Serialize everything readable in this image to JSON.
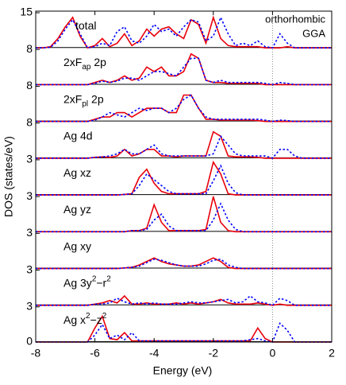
{
  "chart_data": {
    "type": "line",
    "xlabel": "Energy (eV)",
    "ylabel": "DOS (states/eV)",
    "annotations": [
      "orthorhombic",
      "GGA"
    ],
    "vline": 0,
    "xlim": [
      -8,
      2
    ],
    "xticks": [
      -8,
      -6,
      -4,
      -2,
      0,
      2
    ],
    "x": [
      -8,
      -7.75,
      -7.5,
      -7.25,
      -7,
      -6.75,
      -6.5,
      -6.25,
      -6,
      -5.75,
      -5.5,
      -5.25,
      -5,
      -4.75,
      -4.5,
      -4.25,
      -4,
      -3.75,
      -3.5,
      -3.25,
      -3,
      -2.75,
      -2.5,
      -2.25,
      -2,
      -1.75,
      -1.5,
      -1.25,
      -1,
      -0.75,
      -0.5,
      -0.25,
      0,
      0.25,
      0.5,
      0.75,
      1,
      1.25,
      1.5,
      1.75,
      2
    ],
    "panels": [
      {
        "label": [
          "total"
        ],
        "ylim": [
          0,
          15
        ],
        "yticks": [
          15
        ],
        "series": [
          {
            "color": "#e8000b",
            "style": "solid",
            "values": [
              0,
              0,
              0.5,
              4,
              9,
              13,
              5,
              0,
              1,
              4,
              0.5,
              2,
              6,
              1,
              3,
              8,
              5,
              8,
              9,
              6,
              4,
              12,
              10,
              2,
              13,
              4,
              1,
              0.5,
              0.5,
              0.5,
              0.5,
              0,
              0,
              0,
              0.5,
              0,
              0,
              0,
              0,
              0,
              0
            ]
          },
          {
            "color": "#0000ff",
            "style": "dotted",
            "values": [
              0,
              0,
              0.3,
              3,
              8,
              12,
              6,
              0,
              0.5,
              2,
              1,
              7,
              9,
              3,
              2,
              5,
              10,
              7,
              8,
              5,
              9,
              12,
              11,
              3,
              5,
              13,
              6,
              1,
              2,
              1,
              3,
              0.5,
              0,
              6,
              2,
              0,
              0,
              0,
              0,
              0,
              0
            ]
          }
        ]
      },
      {
        "label": [
          "2xF",
          {
            "sub": "ap"
          },
          "  2p"
        ],
        "ylim": [
          0,
          8
        ],
        "yticks": [
          8
        ],
        "series": [
          {
            "color": "#e8000b",
            "style": "solid",
            "values": [
              0,
              0,
              0,
              0,
              0,
              0,
              0,
              0,
              0.5,
              1,
              0.5,
              1,
              2,
              1,
              1.5,
              4,
              3,
              4,
              2,
              2,
              3,
              7,
              6,
              1,
              0.5,
              0.5,
              0.3,
              0.3,
              0.3,
              0.3,
              0.3,
              0,
              0,
              0,
              0,
              0,
              0,
              0,
              0,
              0,
              0
            ]
          },
          {
            "color": "#0000ff",
            "style": "dotted",
            "values": [
              0,
              0,
              0,
              0,
              0,
              0,
              0,
              0,
              0.3,
              0.8,
              0.5,
              0.8,
              1.5,
              1.5,
              1,
              2,
              3,
              3,
              2.5,
              2,
              4,
              6,
              6,
              1,
              0.5,
              1,
              0.5,
              0.5,
              0.5,
              0.5,
              0.5,
              0.3,
              0,
              0.5,
              0.3,
              0,
              0,
              0,
              0,
              0,
              0
            ]
          }
        ]
      },
      {
        "label": [
          "2xF",
          {
            "sub": "pl"
          },
          "  2p"
        ],
        "ylim": [
          0,
          8
        ],
        "yticks": [
          8
        ],
        "series": [
          {
            "color": "#e8000b",
            "style": "solid",
            "values": [
              0,
              0,
              0,
              0,
              0,
              0,
              0,
              0,
              0.5,
              1,
              1,
              2,
              2,
              1,
              2,
              3,
              3,
              3,
              2,
              2,
              6,
              6,
              3,
              0.5,
              0.5,
              0.3,
              0.3,
              0.3,
              0.3,
              0.3,
              0.2,
              0,
              0,
              0,
              0,
              0,
              0,
              0,
              0,
              0,
              0
            ]
          },
          {
            "color": "#0000ff",
            "style": "dotted",
            "values": [
              0,
              0,
              0,
              0,
              0,
              0,
              0,
              0,
              0.3,
              1,
              2,
              1.5,
              1,
              2,
              3,
              2.5,
              3,
              3,
              2,
              3,
              5,
              6,
              3,
              1,
              0.5,
              0.5,
              0.5,
              0.5,
              0.5,
              0.5,
              0.5,
              0.3,
              0,
              0.3,
              0.2,
              0,
              0,
              0,
              0,
              0,
              0
            ]
          }
        ]
      },
      {
        "label": [
          "Ag 4d"
        ],
        "ylim": [
          0,
          8
        ],
        "yticks": [
          8
        ],
        "series": [
          {
            "color": "#e8000b",
            "style": "solid",
            "values": [
              0,
              0,
              0,
              0,
              0,
              0,
              0,
              0,
              0.2,
              0.3,
              0.2,
              0.5,
              2,
              0.5,
              1,
              2,
              2,
              0.5,
              0.5,
              0.3,
              0.5,
              0.5,
              0.5,
              0.5,
              6,
              5,
              0.5,
              0.3,
              0.3,
              0.3,
              0.2,
              0,
              0,
              0,
              0,
              0,
              0,
              0,
              0,
              0,
              0
            ]
          },
          {
            "color": "#0000ff",
            "style": "dotted",
            "values": [
              0,
              0,
              0,
              0,
              0,
              0,
              0,
              0,
              0.2,
              0.3,
              0.5,
              1,
              2,
              1,
              1,
              2,
              3,
              1,
              0.5,
              0.5,
              0.5,
              0.5,
              0.5,
              0.5,
              1,
              5,
              3,
              1,
              0.5,
              0.5,
              0.5,
              0.5,
              0,
              2,
              2,
              0.5,
              0,
              0,
              0,
              0,
              0
            ]
          }
        ]
      },
      {
        "label": [
          "Ag xz"
        ],
        "ylim": [
          0,
          3
        ],
        "yticks": [
          3
        ],
        "series": [
          {
            "color": "#e8000b",
            "style": "solid",
            "values": [
              0,
              0,
              0,
              0,
              0,
              0,
              0,
              0,
              0,
              0,
              0,
              0,
              0.05,
              0.1,
              1.5,
              2.2,
              1.0,
              0.3,
              0.1,
              0.1,
              0.1,
              0.1,
              0.1,
              0.3,
              2.8,
              1.8,
              0.1,
              0,
              0,
              0,
              0,
              0,
              0,
              0,
              0,
              0,
              0,
              0,
              0,
              0,
              0
            ]
          },
          {
            "color": "#0000ff",
            "style": "dotted",
            "values": [
              0,
              0,
              0,
              0,
              0,
              0,
              0,
              0,
              0,
              0,
              0,
              0,
              0.05,
              0.1,
              0.8,
              1.8,
              1.3,
              0.8,
              0.3,
              0.1,
              0.1,
              0.1,
              0.1,
              0.1,
              1.2,
              2.5,
              1.0,
              0.2,
              0,
              0,
              0,
              0,
              0,
              0,
              0,
              0,
              0,
              0,
              0,
              0,
              0
            ]
          }
        ]
      },
      {
        "label": [
          "Ag yz"
        ],
        "ylim": [
          0,
          3
        ],
        "yticks": [
          3
        ],
        "series": [
          {
            "color": "#e8000b",
            "style": "solid",
            "values": [
              0,
              0,
              0,
              0,
              0,
              0,
              0,
              0,
              0,
              0,
              0,
              0,
              0,
              0.1,
              0.1,
              0.3,
              2.3,
              0.8,
              0.1,
              0.1,
              0.1,
              0.1,
              0.1,
              0.2,
              3.0,
              0.8,
              0.1,
              0,
              0,
              0,
              0,
              0,
              0,
              0,
              0,
              0,
              0,
              0,
              0,
              0,
              0
            ]
          },
          {
            "color": "#0000ff",
            "style": "dotted",
            "values": [
              0,
              0,
              0,
              0,
              0,
              0,
              0,
              0,
              0,
              0,
              0,
              0,
              0,
              0.1,
              0.1,
              0.2,
              1.0,
              1.5,
              0.5,
              0.1,
              0.1,
              0.1,
              0.1,
              0.1,
              1.0,
              2.4,
              1.0,
              0.2,
              0,
              0,
              0,
              0,
              0,
              0,
              0,
              0,
              0,
              0,
              0,
              0,
              0
            ]
          }
        ]
      },
      {
        "label": [
          "Ag xy"
        ],
        "ylim": [
          0,
          3
        ],
        "yticks": [
          3
        ],
        "series": [
          {
            "color": "#e8000b",
            "style": "solid",
            "values": [
              0,
              0,
              0,
              0,
              0,
              0,
              0,
              0,
              0,
              0,
              0,
              0,
              0.05,
              0.1,
              0.3,
              0.6,
              0.9,
              0.6,
              0.4,
              0.3,
              0.2,
              0.2,
              0.3,
              0.6,
              0.9,
              0.6,
              0.1,
              0,
              0,
              0,
              0,
              0,
              0,
              0,
              0,
              0,
              0,
              0,
              0,
              0,
              0
            ]
          },
          {
            "color": "#0000ff",
            "style": "dotted",
            "values": [
              0,
              0,
              0,
              0,
              0,
              0,
              0,
              0,
              0,
              0,
              0,
              0,
              0.05,
              0.1,
              0.2,
              0.5,
              0.8,
              0.7,
              0.5,
              0.3,
              0.2,
              0.2,
              0.2,
              0.4,
              0.7,
              0.8,
              0.3,
              0.1,
              0,
              0,
              0,
              0,
              0,
              0,
              0,
              0,
              0,
              0,
              0,
              0,
              0
            ]
          }
        ]
      },
      {
        "label": [
          "Ag 3y",
          {
            "sup": "2"
          },
          "−r",
          {
            "sup": "2"
          }
        ],
        "ylim": [
          0,
          3
        ],
        "yticks": [
          3
        ],
        "series": [
          {
            "color": "#e8000b",
            "style": "solid",
            "values": [
              0,
              0,
              0,
              0,
              0,
              0,
              0,
              0,
              0.1,
              0.2,
              0.4,
              0.2,
              0.8,
              0.1,
              0.1,
              0.2,
              0.1,
              0.1,
              0.1,
              0.2,
              0.1,
              0.2,
              0.1,
              0.2,
              0.3,
              0.5,
              0.2,
              0.1,
              0.1,
              0.1,
              0.2,
              0.1,
              0,
              0.1,
              0,
              0,
              0,
              0,
              0,
              0,
              0
            ]
          },
          {
            "color": "#0000ff",
            "style": "dotted",
            "values": [
              0,
              0,
              0,
              0,
              0,
              0,
              0,
              0,
              0.1,
              0.1,
              0.2,
              0.6,
              0.3,
              0.1,
              0.2,
              0.1,
              0.2,
              0.1,
              0.1,
              0.1,
              0.2,
              0.3,
              0.2,
              0.2,
              0.3,
              0.4,
              0.5,
              0.2,
              0.3,
              0.8,
              0.3,
              0.2,
              0,
              0.6,
              0.4,
              0,
              0,
              0,
              0,
              0,
              0
            ]
          }
        ]
      },
      {
        "label": [
          "Ag x",
          {
            "sup": "2"
          },
          "−z",
          {
            "sup": "2"
          }
        ],
        "ylim": [
          0,
          3
        ],
        "yticks": [
          0,
          3
        ],
        "series": [
          {
            "color": "#e8000b",
            "style": "solid",
            "values": [
              0,
              0,
              0,
              0,
              0,
              0,
              0,
              0,
              1.2,
              2.2,
              0.3,
              0.2,
              0.8,
              0.1,
              0.1,
              0.1,
              0.1,
              0.1,
              0.1,
              0.1,
              0.1,
              0.1,
              0.1,
              0.1,
              0.1,
              0.1,
              0.1,
              0.1,
              0.1,
              0.1,
              1.2,
              0.3,
              0,
              0,
              0,
              0,
              0,
              0,
              0,
              0,
              0
            ]
          },
          {
            "color": "#0000ff",
            "style": "dotted",
            "values": [
              0,
              0,
              0,
              0,
              0,
              0,
              0,
              0,
              0.6,
              1.5,
              0.3,
              0.6,
              0.2,
              0.8,
              0.1,
              0.1,
              0.1,
              0.1,
              0.1,
              0.1,
              0.1,
              0.1,
              0.1,
              0.1,
              0.1,
              0.1,
              0.1,
              0.1,
              0.1,
              0.2,
              0.3,
              0.1,
              0,
              1.6,
              1.0,
              0,
              0,
              0,
              0,
              0,
              0
            ]
          }
        ]
      }
    ]
  }
}
